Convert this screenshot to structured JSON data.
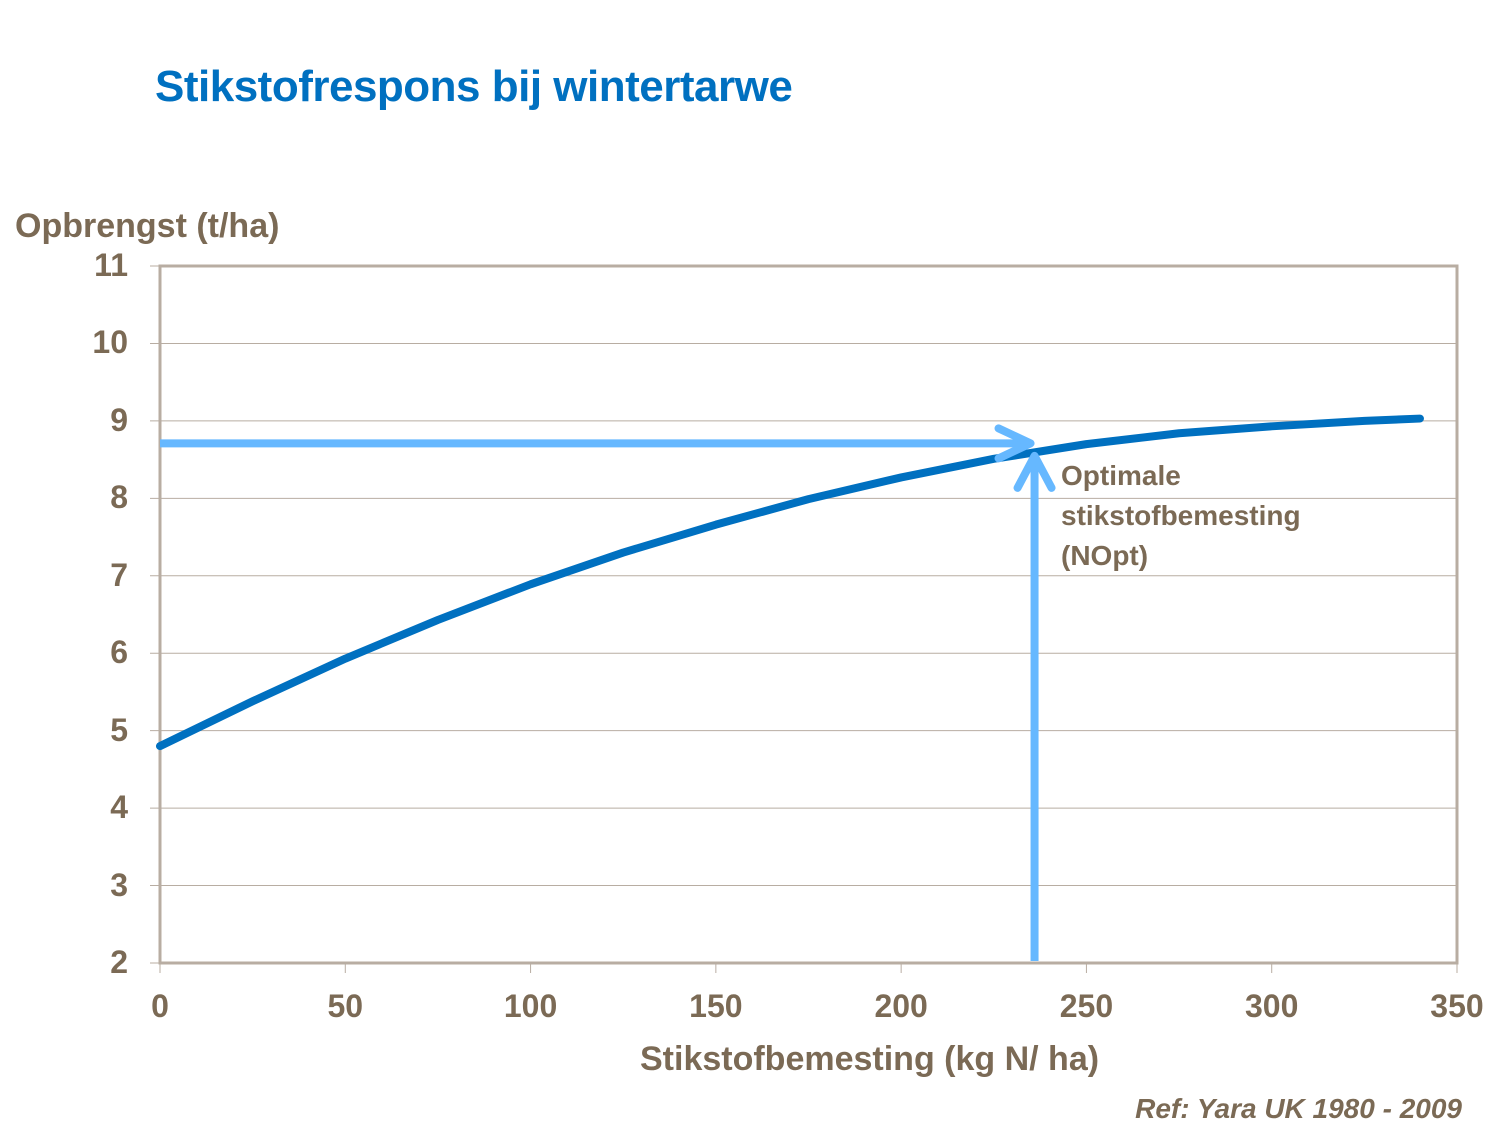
{
  "title": "Stikstofrespons bij wintertarwe",
  "y_axis_label": "Opbrengst (t/ha)",
  "x_axis_label": "Stikstofbemesting (kg N/ ha)",
  "reference": "Ref: Yara UK 1980 - 2009",
  "annotation": {
    "line1": "Optimale",
    "line2": "stikstofbemesting",
    "line3": "(NOpt)"
  },
  "y_ticks": [
    "11",
    "10",
    "9",
    "8",
    "7",
    "6",
    "5",
    "4",
    "3",
    "2"
  ],
  "x_ticks": [
    "0",
    "50",
    "100",
    "150",
    "200",
    "250",
    "300",
    "350"
  ],
  "colors": {
    "title": "#0070c0",
    "curve": "#0070c0",
    "arrows": "#66b8ff",
    "text": "#7b6a55",
    "axis": "#b8ada2",
    "grid": "#b8ada2"
  },
  "chart_data": {
    "type": "line",
    "title": "Stikstofrespons bij wintertarwe",
    "xlabel": "Stikstofbemesting (kg N/ ha)",
    "ylabel": "Opbrengst (t/ha)",
    "xlim": [
      0,
      350
    ],
    "ylim": [
      2,
      11
    ],
    "grid": {
      "horizontal": true,
      "vertical": false
    },
    "legend": null,
    "series": [
      {
        "name": "Opbrengst",
        "x": [
          0,
          25,
          50,
          75,
          100,
          125,
          150,
          175,
          200,
          225,
          250,
          275,
          300,
          325,
          340
        ],
        "values": [
          4.8,
          5.38,
          5.93,
          6.43,
          6.89,
          7.3,
          7.66,
          7.99,
          8.27,
          8.51,
          8.7,
          8.84,
          8.93,
          9.0,
          9.03
        ]
      }
    ],
    "annotations": [
      {
        "type": "arrow",
        "direction": "horizontal",
        "from": [
          0,
          8.71
        ],
        "to": [
          236,
          8.71
        ]
      },
      {
        "type": "arrow",
        "direction": "vertical",
        "from": [
          236,
          2
        ],
        "to": [
          236,
          8.6
        ]
      },
      {
        "type": "text",
        "text": "Optimale stikstofbemesting (NOpt)",
        "at": [
          243,
          8.4
        ]
      }
    ],
    "optimum": {
      "x": 236,
      "y": 8.6
    }
  }
}
